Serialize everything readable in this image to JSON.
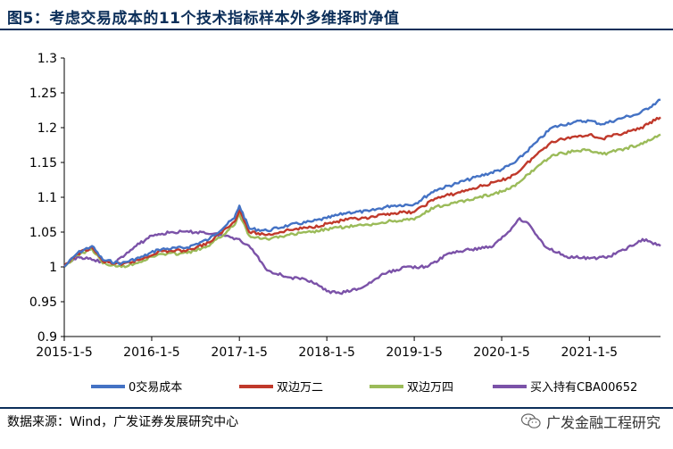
{
  "title": "图5：考虑交易成本的11个技术指标样本外多维择时净值",
  "source": "数据来源：Wind，广发证券发展研究中心",
  "brand": "广发金融工程研究",
  "brand_icon": "wechat-icon",
  "chart_data": {
    "type": "line",
    "ylim": [
      0.9,
      1.3
    ],
    "yticks": [
      0.9,
      0.95,
      1,
      1.05,
      1.1,
      1.15,
      1.2,
      1.25,
      1.3
    ],
    "ytick_labels": [
      "0.9",
      "0.95",
      "1",
      "1.05",
      "1.1",
      "1.15",
      "1.2",
      "1.25",
      "1.3"
    ],
    "xlim": [
      "2015-01-05",
      "2021-10-29"
    ],
    "xticks": [
      "2015-01-05",
      "2016-01-05",
      "2017-01-05",
      "2018-01-05",
      "2019-01-05",
      "2020-01-05",
      "2021-01-05"
    ],
    "xtick_labels": [
      "2015-1-5",
      "2016-1-5",
      "2017-1-5",
      "2018-1-5",
      "2019-1-5",
      "2020-1-5",
      "2021-1-5"
    ],
    "grid": false,
    "legend_position": "bottom",
    "series": [
      {
        "name": "0交易成本",
        "color": "#4472c4",
        "points": [
          [
            "2015-01-05",
            1.0
          ],
          [
            "2015-03-01",
            1.02
          ],
          [
            "2015-05-01",
            1.03
          ],
          [
            "2015-06-15",
            1.01
          ],
          [
            "2015-09-01",
            1.005
          ],
          [
            "2015-12-01",
            1.015
          ],
          [
            "2016-02-01",
            1.025
          ],
          [
            "2016-06-01",
            1.028
          ],
          [
            "2016-09-01",
            1.04
          ],
          [
            "2016-12-15",
            1.07
          ],
          [
            "2017-01-05",
            1.088
          ],
          [
            "2017-02-15",
            1.055
          ],
          [
            "2017-05-01",
            1.052
          ],
          [
            "2017-08-01",
            1.06
          ],
          [
            "2017-11-01",
            1.065
          ],
          [
            "2018-01-05",
            1.07
          ],
          [
            "2018-04-01",
            1.078
          ],
          [
            "2018-07-01",
            1.08
          ],
          [
            "2018-10-01",
            1.088
          ],
          [
            "2019-01-05",
            1.09
          ],
          [
            "2019-04-01",
            1.11
          ],
          [
            "2019-07-01",
            1.12
          ],
          [
            "2019-10-01",
            1.13
          ],
          [
            "2020-01-05",
            1.14
          ],
          [
            "2020-03-01",
            1.15
          ],
          [
            "2020-06-01",
            1.18
          ],
          [
            "2020-08-01",
            1.2
          ],
          [
            "2020-11-01",
            1.208
          ],
          [
            "2021-01-05",
            1.21
          ],
          [
            "2021-03-01",
            1.205
          ],
          [
            "2021-06-01",
            1.215
          ],
          [
            "2021-08-01",
            1.22
          ],
          [
            "2021-10-29",
            1.24
          ]
        ]
      },
      {
        "name": "双边万二",
        "color": "#c0392b",
        "points": [
          [
            "2015-01-05",
            1.0
          ],
          [
            "2015-03-01",
            1.019
          ],
          [
            "2015-05-01",
            1.028
          ],
          [
            "2015-06-15",
            1.008
          ],
          [
            "2015-09-01",
            1.003
          ],
          [
            "2015-12-01",
            1.012
          ],
          [
            "2016-02-01",
            1.022
          ],
          [
            "2016-06-01",
            1.024
          ],
          [
            "2016-09-01",
            1.035
          ],
          [
            "2016-12-15",
            1.065
          ],
          [
            "2017-01-05",
            1.082
          ],
          [
            "2017-02-15",
            1.05
          ],
          [
            "2017-05-01",
            1.046
          ],
          [
            "2017-08-01",
            1.053
          ],
          [
            "2017-11-01",
            1.057
          ],
          [
            "2018-01-05",
            1.062
          ],
          [
            "2018-04-01",
            1.068
          ],
          [
            "2018-07-01",
            1.07
          ],
          [
            "2018-10-01",
            1.077
          ],
          [
            "2019-01-05",
            1.079
          ],
          [
            "2019-04-01",
            1.098
          ],
          [
            "2019-07-01",
            1.106
          ],
          [
            "2019-10-01",
            1.115
          ],
          [
            "2020-01-05",
            1.124
          ],
          [
            "2020-03-01",
            1.133
          ],
          [
            "2020-06-01",
            1.162
          ],
          [
            "2020-08-01",
            1.18
          ],
          [
            "2020-11-01",
            1.187
          ],
          [
            "2021-01-05",
            1.19
          ],
          [
            "2021-03-01",
            1.184
          ],
          [
            "2021-06-01",
            1.193
          ],
          [
            "2021-08-01",
            1.198
          ],
          [
            "2021-10-29",
            1.215
          ]
        ]
      },
      {
        "name": "双边万四",
        "color": "#9bbb59",
        "points": [
          [
            "2015-01-05",
            1.0
          ],
          [
            "2015-03-01",
            1.017
          ],
          [
            "2015-05-01",
            1.026
          ],
          [
            "2015-06-15",
            1.005
          ],
          [
            "2015-09-01",
            1.0
          ],
          [
            "2015-12-01",
            1.009
          ],
          [
            "2016-02-01",
            1.018
          ],
          [
            "2016-06-01",
            1.02
          ],
          [
            "2016-09-01",
            1.03
          ],
          [
            "2016-12-15",
            1.06
          ],
          [
            "2017-01-05",
            1.076
          ],
          [
            "2017-02-15",
            1.045
          ],
          [
            "2017-05-01",
            1.04
          ],
          [
            "2017-08-01",
            1.046
          ],
          [
            "2017-11-01",
            1.05
          ],
          [
            "2018-01-05",
            1.054
          ],
          [
            "2018-04-01",
            1.058
          ],
          [
            "2018-07-01",
            1.06
          ],
          [
            "2018-10-01",
            1.066
          ],
          [
            "2019-01-05",
            1.068
          ],
          [
            "2019-04-01",
            1.086
          ],
          [
            "2019-07-01",
            1.092
          ],
          [
            "2019-10-01",
            1.1
          ],
          [
            "2020-01-05",
            1.108
          ],
          [
            "2020-03-01",
            1.116
          ],
          [
            "2020-06-01",
            1.144
          ],
          [
            "2020-08-01",
            1.16
          ],
          [
            "2020-11-01",
            1.166
          ],
          [
            "2021-01-05",
            1.168
          ],
          [
            "2021-03-01",
            1.162
          ],
          [
            "2021-06-01",
            1.17
          ],
          [
            "2021-08-01",
            1.175
          ],
          [
            "2021-10-29",
            1.19
          ]
        ]
      },
      {
        "name": "买入持有CBA00652",
        "color": "#7b52a8",
        "points": [
          [
            "2015-01-05",
            1.0
          ],
          [
            "2015-03-01",
            1.015
          ],
          [
            "2015-05-01",
            1.01
          ],
          [
            "2015-08-01",
            1.005
          ],
          [
            "2015-11-01",
            1.03
          ],
          [
            "2016-01-05",
            1.045
          ],
          [
            "2016-04-01",
            1.05
          ],
          [
            "2016-08-01",
            1.05
          ],
          [
            "2016-11-01",
            1.045
          ],
          [
            "2017-01-05",
            1.04
          ],
          [
            "2017-03-01",
            1.025
          ],
          [
            "2017-05-01",
            0.995
          ],
          [
            "2017-08-01",
            0.985
          ],
          [
            "2017-11-01",
            0.98
          ],
          [
            "2018-01-05",
            0.965
          ],
          [
            "2018-03-01",
            0.962
          ],
          [
            "2018-06-01",
            0.97
          ],
          [
            "2018-09-01",
            0.99
          ],
          [
            "2018-12-01",
            1.0
          ],
          [
            "2019-03-01",
            1.0
          ],
          [
            "2019-06-01",
            1.02
          ],
          [
            "2019-09-01",
            1.025
          ],
          [
            "2019-12-01",
            1.03
          ],
          [
            "2020-02-01",
            1.05
          ],
          [
            "2020-03-20",
            1.07
          ],
          [
            "2020-05-01",
            1.06
          ],
          [
            "2020-07-01",
            1.03
          ],
          [
            "2020-10-01",
            1.015
          ],
          [
            "2021-01-05",
            1.012
          ],
          [
            "2021-04-01",
            1.015
          ],
          [
            "2021-07-01",
            1.03
          ],
          [
            "2021-08-15",
            1.04
          ],
          [
            "2021-10-29",
            1.03
          ]
        ]
      }
    ]
  }
}
